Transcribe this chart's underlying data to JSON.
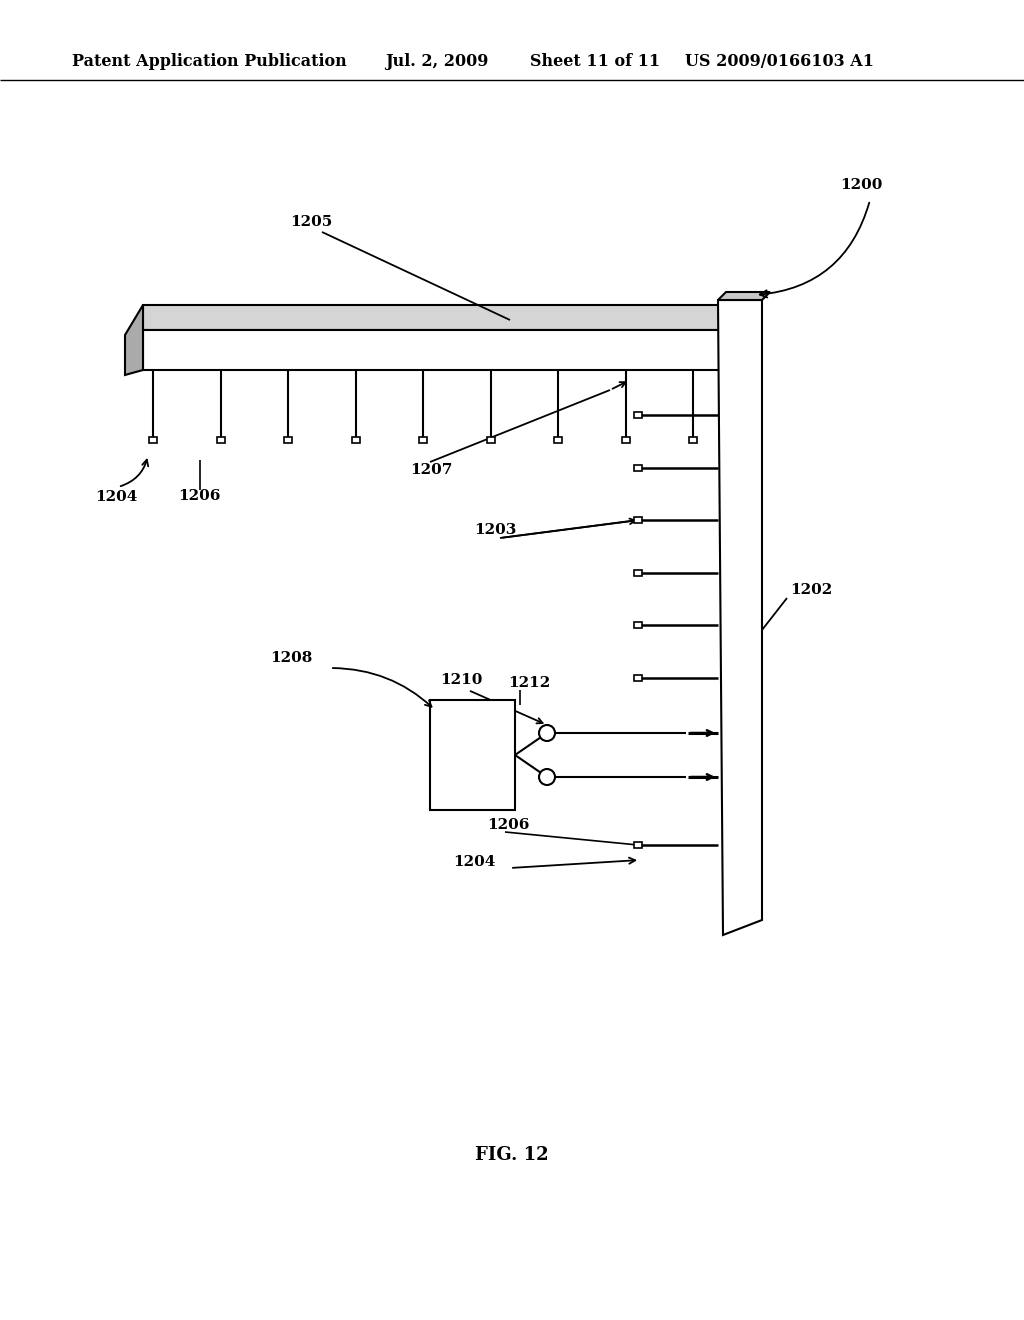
{
  "bg_color": "#ffffff",
  "header_text": "Patent Application Publication",
  "header_date": "Jul. 2, 2009",
  "header_sheet": "Sheet 11 of 11",
  "header_patent": "US 2009/0166103 A1",
  "fig_label": "FIG. 12"
}
